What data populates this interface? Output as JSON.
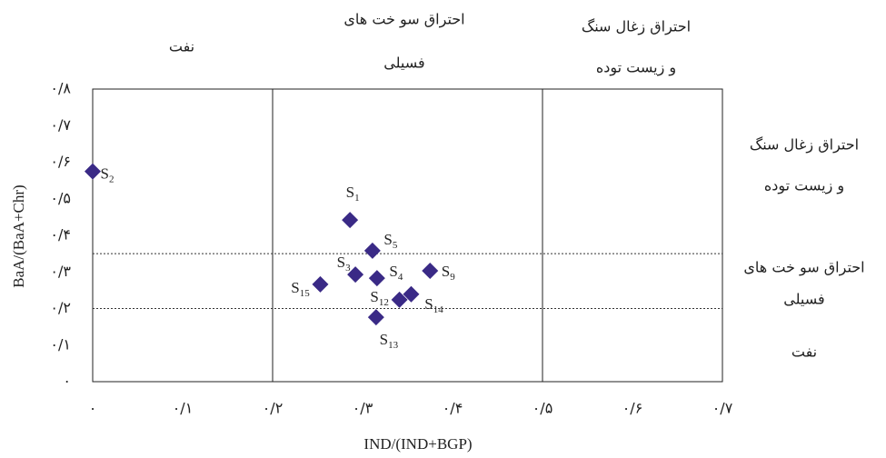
{
  "chart_data": {
    "type": "scatter",
    "x_label": "IND/(IND+BGP)",
    "y_label": "BaA/(BaA+Chr)",
    "xlim": [
      0,
      0.7
    ],
    "ylim": [
      0,
      0.8
    ],
    "xticks": [
      {
        "value": 0,
        "label": "۰"
      },
      {
        "value": 0.1,
        "label": "۰/۱"
      },
      {
        "value": 0.2,
        "label": "۰/۲"
      },
      {
        "value": 0.3,
        "label": "۰/۳"
      },
      {
        "value": 0.4,
        "label": "۰/۴"
      },
      {
        "value": 0.5,
        "label": "۰/۵"
      },
      {
        "value": 0.6,
        "label": "۰/۶"
      },
      {
        "value": 0.7,
        "label": "۰/۷"
      }
    ],
    "yticks": [
      {
        "value": 0,
        "label": "۰"
      },
      {
        "value": 0.1,
        "label": "۰/۱"
      },
      {
        "value": 0.2,
        "label": "۰/۲"
      },
      {
        "value": 0.3,
        "label": "۰/۳"
      },
      {
        "value": 0.4,
        "label": "۰/۴"
      },
      {
        "value": 0.5,
        "label": "۰/۵"
      },
      {
        "value": 0.6,
        "label": "۰/۶"
      },
      {
        "value": 0.7,
        "label": "۰/۷"
      },
      {
        "value": 0.8,
        "label": "۰/۸"
      }
    ],
    "x": [
      0.0,
      0.286,
      0.311,
      0.292,
      0.316,
      0.375,
      0.253,
      0.341,
      0.354,
      0.315
    ],
    "values": [
      0.575,
      0.442,
      0.358,
      0.293,
      0.283,
      0.303,
      0.266,
      0.224,
      0.239,
      0.176
    ],
    "labels": [
      {
        "text": "S",
        "sub": "2"
      },
      {
        "text": "S",
        "sub": "1"
      },
      {
        "text": "S",
        "sub": "5"
      },
      {
        "text": "S",
        "sub": "3"
      },
      {
        "text": "S",
        "sub": "4"
      },
      {
        "text": "S",
        "sub": "9"
      },
      {
        "text": "S",
        "sub": "15"
      },
      {
        "text": "S",
        "sub": "12"
      },
      {
        "text": "S",
        "sub": "14"
      },
      {
        "text": "S",
        "sub": "13"
      }
    ],
    "color": "#3a2a86",
    "x_refs": [
      0.2,
      0.5
    ],
    "y_refs": [
      0.2,
      0.35
    ],
    "top_annotations": [
      [
        "نفت"
      ],
      [
        "احتراق سو خت های",
        "فسیلی"
      ],
      [
        "احتراق زغال سنگ",
        "و زیست توده"
      ]
    ],
    "right_annotations": [
      [
        "احتراق زغال سنگ",
        "و زیست توده"
      ],
      [
        "احتراق سو خت های",
        "فسیلی"
      ],
      [
        "نفت"
      ]
    ]
  }
}
